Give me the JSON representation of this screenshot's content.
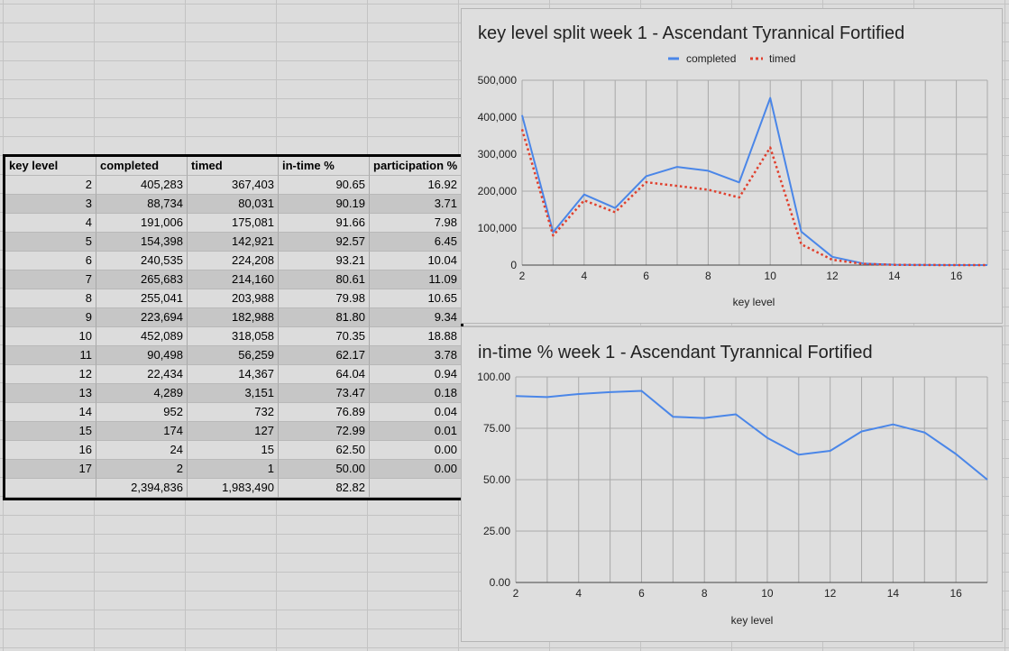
{
  "table": {
    "headers": [
      "key level",
      "completed",
      "timed",
      "in-time %",
      "participation %"
    ],
    "rows": [
      [
        "2",
        "405,283",
        "367,403",
        "90.65",
        "16.92"
      ],
      [
        "3",
        "88,734",
        "80,031",
        "90.19",
        "3.71"
      ],
      [
        "4",
        "191,006",
        "175,081",
        "91.66",
        "7.98"
      ],
      [
        "5",
        "154,398",
        "142,921",
        "92.57",
        "6.45"
      ],
      [
        "6",
        "240,535",
        "224,208",
        "93.21",
        "10.04"
      ],
      [
        "7",
        "265,683",
        "214,160",
        "80.61",
        "11.09"
      ],
      [
        "8",
        "255,041",
        "203,988",
        "79.98",
        "10.65"
      ],
      [
        "9",
        "223,694",
        "182,988",
        "81.80",
        "9.34"
      ],
      [
        "10",
        "452,089",
        "318,058",
        "70.35",
        "18.88"
      ],
      [
        "11",
        "90,498",
        "56,259",
        "62.17",
        "3.78"
      ],
      [
        "12",
        "22,434",
        "14,367",
        "64.04",
        "0.94"
      ],
      [
        "13",
        "4,289",
        "3,151",
        "73.47",
        "0.18"
      ],
      [
        "14",
        "952",
        "732",
        "76.89",
        "0.04"
      ],
      [
        "15",
        "174",
        "127",
        "72.99",
        "0.01"
      ],
      [
        "16",
        "24",
        "15",
        "62.50",
        "0.00"
      ],
      [
        "17",
        "2",
        "1",
        "50.00",
        "0.00"
      ]
    ],
    "total": [
      "",
      "2,394,836",
      "1,983,490",
      "82.82",
      ""
    ]
  },
  "chart_data": [
    {
      "type": "line",
      "title": "key level split week 1 - Ascendant Tyrannical Fortified",
      "xlabel": "key level",
      "ylabel": "",
      "x": [
        2,
        3,
        4,
        5,
        6,
        7,
        8,
        9,
        10,
        11,
        12,
        13,
        14,
        15,
        16,
        17
      ],
      "xlim": [
        2,
        17
      ],
      "ylim": [
        0,
        500000
      ],
      "xticks": [
        "2",
        "4",
        "6",
        "8",
        "10",
        "12",
        "14",
        "16"
      ],
      "yticks": [
        "0",
        "100,000",
        "200,000",
        "300,000",
        "400,000",
        "500,000"
      ],
      "grid": true,
      "legend_position": "top",
      "series": [
        {
          "name": "completed",
          "color": "#4a86e8",
          "style": "solid",
          "values": [
            405283,
            88734,
            191006,
            154398,
            240535,
            265683,
            255041,
            223694,
            452089,
            90498,
            22434,
            4289,
            952,
            174,
            24,
            2
          ]
        },
        {
          "name": "timed",
          "color": "#e0402e",
          "style": "dotted",
          "values": [
            367403,
            80031,
            175081,
            142921,
            224208,
            214160,
            203988,
            182988,
            318058,
            56259,
            14367,
            3151,
            732,
            127,
            15,
            1
          ]
        }
      ]
    },
    {
      "type": "line",
      "title": "in-time % week 1 - Ascendant Tyrannical Fortified",
      "xlabel": "key level",
      "ylabel": "",
      "x": [
        2,
        3,
        4,
        5,
        6,
        7,
        8,
        9,
        10,
        11,
        12,
        13,
        14,
        15,
        16,
        17
      ],
      "xlim": [
        2,
        17
      ],
      "ylim": [
        0,
        100
      ],
      "xticks": [
        "2",
        "4",
        "6",
        "8",
        "10",
        "12",
        "14",
        "16"
      ],
      "yticks": [
        "0.00",
        "25.00",
        "50.00",
        "75.00",
        "100.00"
      ],
      "grid": true,
      "legend_position": "none",
      "series": [
        {
          "color": "#4a86e8",
          "style": "solid",
          "values": [
            90.65,
            90.19,
            91.66,
            92.57,
            93.21,
            80.61,
            79.98,
            81.8,
            70.35,
            62.17,
            64.04,
            73.47,
            76.89,
            72.99,
            62.5,
            50.0
          ]
        }
      ]
    }
  ]
}
